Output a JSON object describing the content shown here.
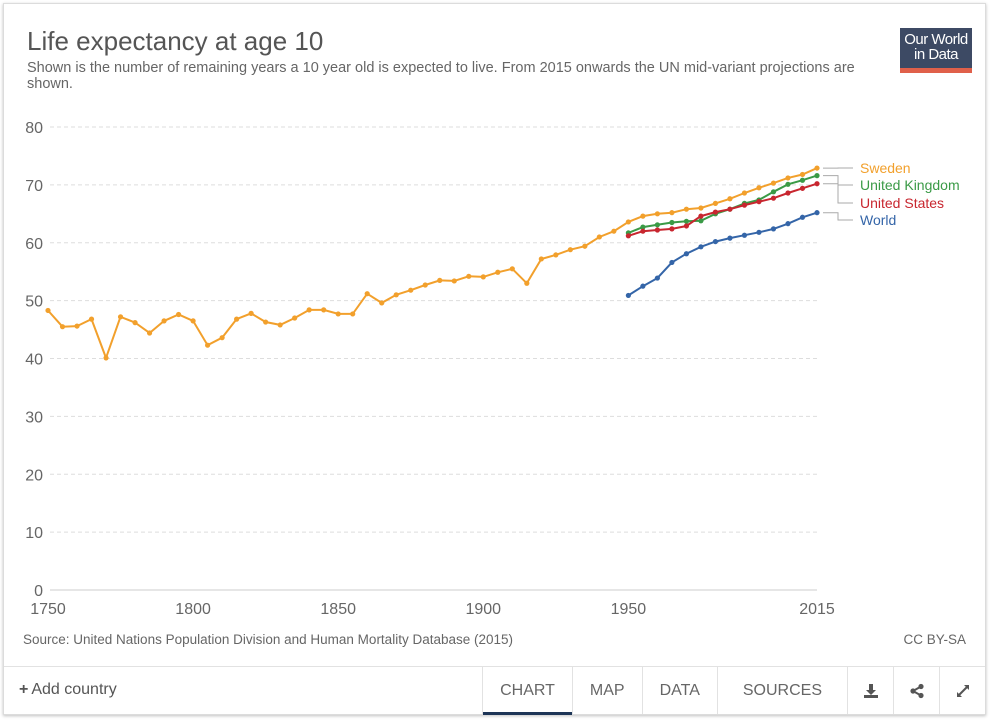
{
  "header": {
    "title": "Life expectancy at age 10",
    "subtitle": "Shown is the number of remaining years a 10 year old is expected to live. From 2015 onwards the UN mid-variant projections are shown.",
    "logo_line1": "Our World",
    "logo_line2": "in Data"
  },
  "footer": {
    "source": "Source: United Nations Population Division and Human Mortality Database (2015)",
    "license": "CC BY-SA",
    "add_country": "Add country",
    "tabs": [
      "CHART",
      "MAP",
      "DATA",
      "SOURCES"
    ],
    "active_tab": "CHART",
    "icons": [
      "download-icon",
      "share-icon",
      "expand-icon"
    ]
  },
  "colors": {
    "Sweden": "#f2a02c",
    "United Kingdom": "#3a9a46",
    "United States": "#c8262f",
    "World": "#3465a8"
  },
  "chart_data": {
    "type": "line",
    "title": "Life expectancy at age 10",
    "xlabel": "",
    "ylabel": "",
    "xlim": [
      1750,
      2015
    ],
    "ylim": [
      0,
      80
    ],
    "x_ticks": [
      "1750",
      "1800",
      "1850",
      "1900",
      "1950",
      "2015"
    ],
    "y_ticks": [
      "0",
      "10",
      "20",
      "30",
      "40",
      "50",
      "60",
      "70",
      "80"
    ],
    "grid": "horizontal dashed",
    "legend": "right (line end labels)",
    "series": [
      {
        "name": "Sweden",
        "x": [
          1750,
          1755,
          1760,
          1765,
          1770,
          1775,
          1780,
          1785,
          1790,
          1795,
          1800,
          1805,
          1810,
          1815,
          1820,
          1825,
          1830,
          1835,
          1840,
          1845,
          1850,
          1855,
          1860,
          1865,
          1870,
          1875,
          1880,
          1885,
          1890,
          1895,
          1900,
          1905,
          1910,
          1915,
          1920,
          1925,
          1930,
          1935,
          1940,
          1945,
          1950,
          1955,
          1960,
          1965,
          1970,
          1975,
          1980,
          1985,
          1990,
          1995,
          2000,
          2005,
          2010,
          2015
        ],
        "values": [
          48.3,
          45.5,
          45.6,
          46.8,
          40.1,
          47.2,
          46.2,
          44.4,
          46.5,
          47.6,
          46.5,
          42.3,
          43.6,
          46.8,
          47.8,
          46.3,
          45.8,
          47.0,
          48.4,
          48.4,
          47.7,
          47.7,
          51.2,
          49.6,
          51.0,
          51.8,
          52.7,
          53.5,
          53.4,
          54.2,
          54.1,
          54.9,
          55.5,
          53.0,
          57.2,
          57.9,
          58.8,
          59.4,
          61.0,
          62.0,
          63.6,
          64.6,
          65.0,
          65.2,
          65.8,
          66.0,
          66.8,
          67.6,
          68.6,
          69.5,
          70.3,
          71.2,
          71.8,
          72.9
        ]
      },
      {
        "name": "United Kingdom",
        "x": [
          1950,
          1955,
          1960,
          1965,
          1970,
          1975,
          1980,
          1985,
          1990,
          1995,
          2000,
          2005,
          2010,
          2015
        ],
        "values": [
          61.7,
          62.7,
          63.1,
          63.5,
          63.7,
          63.8,
          65.0,
          65.8,
          66.8,
          67.4,
          68.8,
          70.1,
          70.8,
          71.6
        ]
      },
      {
        "name": "United States",
        "x": [
          1950,
          1955,
          1960,
          1965,
          1970,
          1975,
          1980,
          1985,
          1990,
          1995,
          2000,
          2005,
          2010,
          2015
        ],
        "values": [
          61.2,
          62.0,
          62.2,
          62.4,
          62.9,
          64.6,
          65.3,
          65.8,
          66.5,
          67.1,
          67.7,
          68.6,
          69.4,
          70.2
        ]
      },
      {
        "name": "World",
        "x": [
          1950,
          1955,
          1960,
          1965,
          1970,
          1975,
          1980,
          1985,
          1990,
          1995,
          2000,
          2005,
          2010,
          2015
        ],
        "values": [
          50.9,
          52.5,
          53.9,
          56.6,
          58.1,
          59.3,
          60.2,
          60.8,
          61.3,
          61.8,
          62.4,
          63.3,
          64.4,
          65.2
        ]
      }
    ]
  }
}
